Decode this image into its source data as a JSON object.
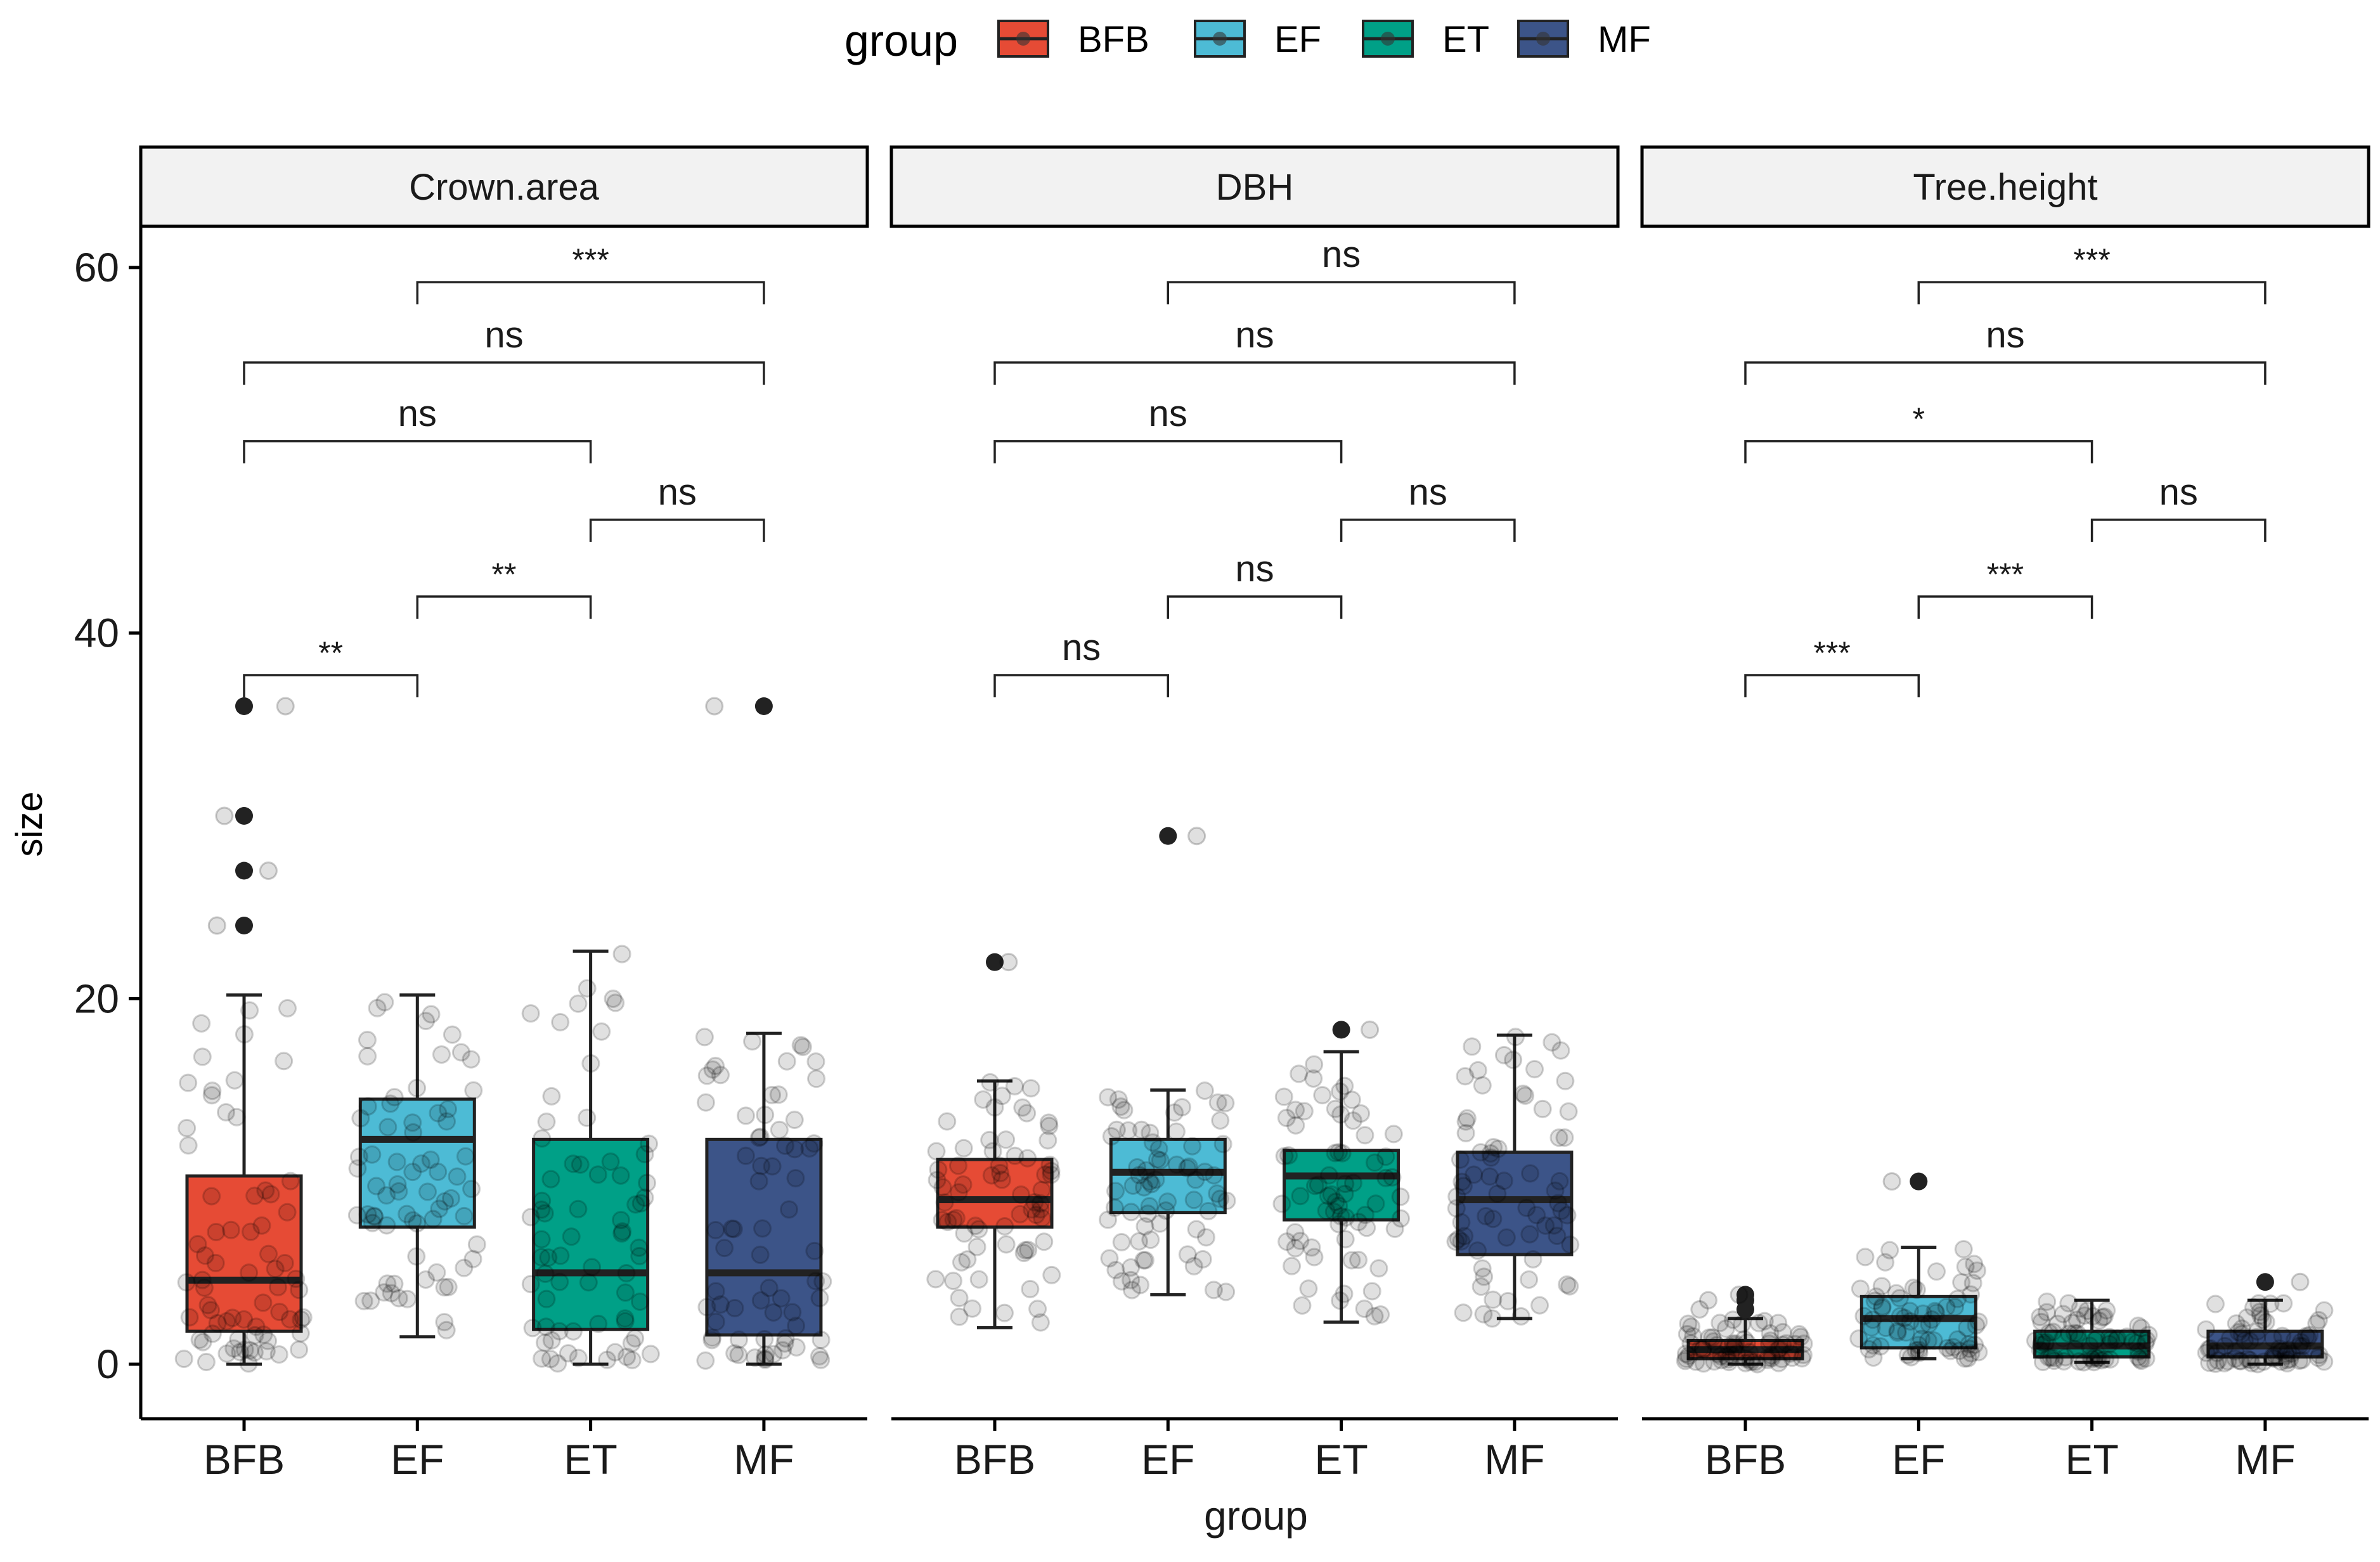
{
  "chart_data": {
    "type": "box",
    "title": "",
    "xlabel": "group",
    "ylabel": "size",
    "ylim": [
      -3,
      62.5
    ],
    "yticks": [
      0,
      20,
      40,
      60
    ],
    "legend": {
      "title": "group",
      "position": "top",
      "entries": [
        {
          "label": "BFB",
          "color": "#E64B35"
        },
        {
          "label": "EF",
          "color": "#4DBBD5"
        },
        {
          "label": "ET",
          "color": "#00A087"
        },
        {
          "label": "MF",
          "color": "#3C5488"
        }
      ]
    },
    "categories": [
      "BFB",
      "EF",
      "ET",
      "MF"
    ],
    "facets": [
      {
        "name": "Crown.area",
        "boxes": [
          {
            "group": "BFB",
            "min": 0,
            "q1": 1.8,
            "median": 4.6,
            "q3": 10.3,
            "max": 20.2,
            "outliers": [
              24,
              27,
              30,
              36
            ]
          },
          {
            "group": "EF",
            "min": 1.5,
            "q1": 7.5,
            "median": 12.3,
            "q3": 14.5,
            "max": 20.2,
            "outliers": []
          },
          {
            "group": "ET",
            "min": 0,
            "q1": 1.9,
            "median": 5.0,
            "q3": 12.3,
            "max": 22.6,
            "outliers": []
          },
          {
            "group": "MF",
            "min": 0,
            "q1": 1.6,
            "median": 5.0,
            "q3": 12.3,
            "max": 18.1,
            "outliers": [
              36
            ]
          }
        ],
        "comparisons": [
          {
            "from": "EF",
            "to": "MF",
            "y": 59.2,
            "label": "***"
          },
          {
            "from": "BFB",
            "to": "MF",
            "y": 54.8,
            "label": "ns"
          },
          {
            "from": "BFB",
            "to": "ET",
            "y": 50.5,
            "label": "ns"
          },
          {
            "from": "ET",
            "to": "MF",
            "y": 46.2,
            "label": "ns"
          },
          {
            "from": "EF",
            "to": "ET",
            "y": 42.0,
            "label": "**"
          },
          {
            "from": "BFB",
            "to": "EF",
            "y": 37.7,
            "label": "**"
          }
        ]
      },
      {
        "name": "DBH",
        "boxes": [
          {
            "group": "BFB",
            "min": 2.0,
            "q1": 7.5,
            "median": 9.0,
            "q3": 11.2,
            "max": 15.5,
            "outliers": [
              22
            ]
          },
          {
            "group": "EF",
            "min": 3.8,
            "q1": 8.3,
            "median": 10.5,
            "q3": 12.3,
            "max": 15.0,
            "outliers": [
              28.9
            ]
          },
          {
            "group": "ET",
            "min": 2.3,
            "q1": 7.9,
            "median": 10.3,
            "q3": 11.7,
            "max": 17.1,
            "outliers": [
              18.3
            ]
          },
          {
            "group": "MF",
            "min": 2.5,
            "q1": 6.0,
            "median": 9.0,
            "q3": 11.6,
            "max": 18.0,
            "outliers": []
          }
        ],
        "comparisons": [
          {
            "from": "EF",
            "to": "MF",
            "y": 59.2,
            "label": "ns"
          },
          {
            "from": "BFB",
            "to": "MF",
            "y": 54.8,
            "label": "ns"
          },
          {
            "from": "BFB",
            "to": "ET",
            "y": 50.5,
            "label": "ns"
          },
          {
            "from": "ET",
            "to": "MF",
            "y": 46.2,
            "label": "ns"
          },
          {
            "from": "EF",
            "to": "ET",
            "y": 42.0,
            "label": "ns"
          },
          {
            "from": "BFB",
            "to": "EF",
            "y": 37.7,
            "label": "ns"
          }
        ]
      },
      {
        "name": "Tree.height",
        "boxes": [
          {
            "group": "BFB",
            "min": 0,
            "q1": 0.3,
            "median": 0.8,
            "q3": 1.3,
            "max": 2.5,
            "outliers": [
              3.0,
              3.5,
              3.8
            ]
          },
          {
            "group": "EF",
            "min": 0.3,
            "q1": 0.9,
            "median": 2.5,
            "q3": 3.7,
            "max": 6.4,
            "outliers": [
              10
            ]
          },
          {
            "group": "ET",
            "min": 0.1,
            "q1": 0.4,
            "median": 1.0,
            "q3": 1.8,
            "max": 3.5,
            "outliers": []
          },
          {
            "group": "MF",
            "min": 0,
            "q1": 0.4,
            "median": 1.0,
            "q3": 1.8,
            "max": 3.5,
            "outliers": [
              4.5
            ]
          }
        ],
        "comparisons": [
          {
            "from": "EF",
            "to": "MF",
            "y": 59.2,
            "label": "***"
          },
          {
            "from": "BFB",
            "to": "MF",
            "y": 54.8,
            "label": "ns"
          },
          {
            "from": "BFB",
            "to": "ET",
            "y": 50.5,
            "label": "*"
          },
          {
            "from": "ET",
            "to": "MF",
            "y": 46.2,
            "label": "ns"
          },
          {
            "from": "EF",
            "to": "ET",
            "y": 42.0,
            "label": "***"
          },
          {
            "from": "BFB",
            "to": "EF",
            "y": 37.7,
            "label": "***"
          }
        ]
      }
    ]
  }
}
